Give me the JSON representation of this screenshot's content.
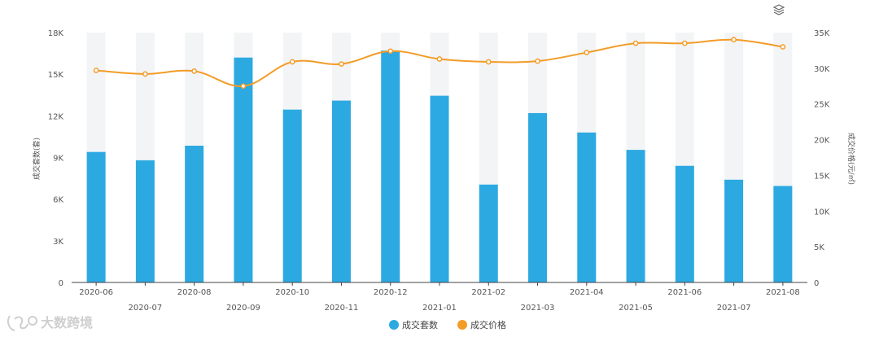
{
  "chart_data": {
    "type": "bar",
    "categories": [
      "2020-06",
      "2020-07",
      "2020-08",
      "2020-09",
      "2020-10",
      "2020-11",
      "2020-12",
      "2021-01",
      "2021-02",
      "2021-03",
      "2021-04",
      "2021-05",
      "2021-06",
      "2021-07",
      "2021-08"
    ],
    "series": [
      {
        "name": "成交套数",
        "type": "bar",
        "axis": "left",
        "color": "#2ca9e1",
        "values": [
          9400,
          8800,
          9850,
          16200,
          12450,
          13100,
          16700,
          13450,
          7050,
          12200,
          10800,
          9550,
          8400,
          7400,
          6950
        ]
      },
      {
        "name": "成交价格",
        "type": "line",
        "axis": "right",
        "color": "#f39c28",
        "values": [
          29700,
          29200,
          29600,
          27500,
          30900,
          30600,
          32400,
          31300,
          30900,
          31000,
          32200,
          33500,
          33500,
          34000,
          33000
        ]
      }
    ],
    "ylabel_left": "成交套数(套)",
    "ylabel_right": "成交价格(元/㎡)",
    "ylim_left": [
      0,
      18000
    ],
    "ylim_right": [
      0,
      35000
    ],
    "yticks_left": [
      "0",
      "3K",
      "6K",
      "9K",
      "12K",
      "15K",
      "18K"
    ],
    "yticks_right": [
      "0",
      "5K",
      "10K",
      "15K",
      "20K",
      "25K",
      "30K",
      "35K"
    ],
    "grid": false,
    "legend_position": "bottom-center",
    "background_bar_color": "#f3f4f6"
  },
  "watermark": "大数跨境",
  "toolbar": {
    "layers_icon": "layers-icon"
  }
}
